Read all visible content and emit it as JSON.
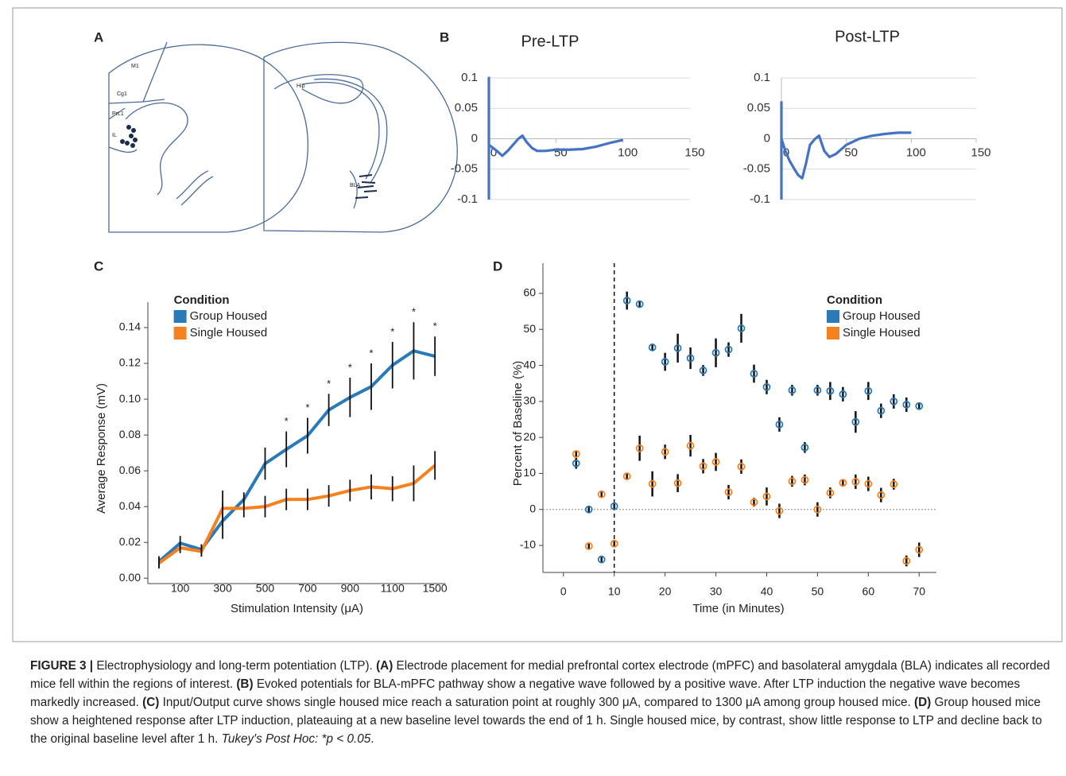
{
  "panel_labels": [
    "A",
    "B",
    "C",
    "D"
  ],
  "diagram": {
    "labels": [
      "M1",
      "Cg1",
      "PrL1",
      "IL",
      "Hip",
      "BLA"
    ]
  },
  "chart_data": [
    {
      "type": "line",
      "title": "Pre-LTP",
      "color": "#4472c4",
      "grid": true,
      "x": [
        0,
        0,
        0,
        3,
        6,
        10,
        14,
        18,
        22,
        25,
        28,
        32,
        36,
        42,
        50,
        60,
        70,
        80,
        90,
        100
      ],
      "values": [
        -0.1,
        0.1,
        -0.01,
        -0.015,
        -0.02,
        -0.028,
        -0.02,
        -0.01,
        0,
        0.005,
        -0.005,
        -0.015,
        -0.02,
        -0.02,
        -0.018,
        -0.018,
        -0.017,
        -0.013,
        -0.007,
        -0.002
      ],
      "xlim": [
        0,
        150
      ],
      "xticks": [
        0,
        50,
        100,
        150
      ],
      "ylim": [
        -0.1,
        0.1
      ],
      "yticks": [
        0.1,
        0.05,
        0,
        -0.05,
        -0.1
      ]
    },
    {
      "type": "line",
      "title": "Post-LTP",
      "color": "#4472c4",
      "grid": true,
      "x": [
        0,
        0,
        0,
        3,
        6,
        10,
        13,
        16,
        19,
        22,
        26,
        29,
        33,
        37,
        42,
        50,
        60,
        70,
        80,
        90,
        100
      ],
      "values": [
        -0.1,
        0.06,
        0,
        -0.02,
        -0.035,
        -0.05,
        -0.06,
        -0.065,
        -0.04,
        -0.01,
        0,
        0.005,
        -0.02,
        -0.03,
        -0.025,
        -0.01,
        0,
        0.005,
        0.008,
        0.01,
        0.01
      ],
      "xlim": [
        0,
        150
      ],
      "xticks": [
        0,
        50,
        100,
        150
      ],
      "ylim": [
        -0.1,
        0.1
      ],
      "yticks": [
        0.1,
        0.05,
        0,
        -0.05,
        -0.1
      ]
    },
    {
      "type": "line",
      "xlabel": "Stimulation Intensity (μA)",
      "ylabel": "Average Response (mV)",
      "categories": [
        null,
        "100",
        null,
        "300",
        null,
        "500",
        null,
        "700",
        null,
        "900",
        null,
        "1100",
        null,
        "1500"
      ],
      "legend": "upper left",
      "legend_title": "Condition",
      "series": [
        {
          "name": "Group Housed",
          "color": "#2a7ab8",
          "values": [
            0.0093,
            0.0196,
            0.016,
            0.032,
            0.044,
            0.064,
            0.072,
            0.0796,
            0.094,
            0.101,
            0.107,
            0.119,
            0.127,
            0.124
          ],
          "errors": [
            0.003,
            0.004,
            0.003,
            0.01,
            0.004,
            0.009,
            0.01,
            0.01,
            0.009,
            0.011,
            0.013,
            0.013,
            0.016,
            0.011
          ]
        },
        {
          "name": "Single Housed",
          "color": "#f5821f",
          "values": [
            0.0084,
            0.017,
            0.015,
            0.039,
            0.039,
            0.04,
            0.044,
            0.044,
            0.046,
            0.049,
            0.051,
            0.05,
            0.053,
            0.063
          ],
          "errors": [
            0.003,
            0.003,
            0.003,
            0.01,
            0.005,
            0.006,
            0.006,
            0.006,
            0.006,
            0.006,
            0.007,
            0.007,
            0.01,
            0.008
          ]
        }
      ],
      "significance": [
        null,
        null,
        null,
        null,
        null,
        null,
        "*",
        "*",
        "*",
        "*",
        "*",
        "*",
        "*",
        "*"
      ],
      "ylim": [
        -0.003,
        0.148
      ],
      "yticks": [
        {
          "value": 0,
          "label": "0.00"
        },
        {
          "value": 0.02,
          "label": "0.02"
        },
        {
          "value": 0.04,
          "label": "0.04"
        },
        {
          "value": 0.06,
          "label": "0.06"
        },
        {
          "value": 0.08,
          "label": "0.08"
        },
        {
          "value": 0.1,
          "label": "0.10"
        },
        {
          "value": 0.12,
          "label": "0.12"
        },
        {
          "value": 0.14,
          "label": "0.14"
        }
      ]
    },
    {
      "type": "scatter",
      "xlabel": "Time (in Minutes)",
      "ylabel": "Percent of Baseline (%)",
      "legend": "upper right",
      "legend_title": "Condition",
      "vline": 10,
      "hline": 0,
      "x": [
        2.5,
        5,
        7.5,
        10,
        12.5,
        15,
        17.5,
        20,
        22.5,
        25,
        27.5,
        30,
        32.5,
        35,
        37.5,
        40,
        42.5,
        45,
        47.5,
        50,
        52.5,
        55,
        57.5,
        60,
        62.5,
        65,
        67.5,
        70
      ],
      "series": [
        {
          "name": "Group Housed",
          "color": "#2a7ab8",
          "values": [
            12.8,
            0,
            -13.9,
            0.9,
            58,
            57,
            45,
            41,
            44.8,
            42,
            38.6,
            43.5,
            44.4,
            50.3,
            37.7,
            34,
            23.6,
            33.1,
            17.2,
            33.1,
            32.9,
            32,
            24.3,
            32.9,
            27.4,
            30,
            29.1,
            28.7
          ],
          "errors": [
            1.5,
            1,
            1,
            1,
            2.5,
            1,
            1,
            2.5,
            4,
            3,
            1.5,
            4,
            2,
            4,
            2.5,
            2,
            2,
            1.5,
            1.5,
            1.5,
            2.5,
            2,
            3,
            2.5,
            2,
            2,
            2,
            1
          ]
        },
        {
          "name": "Single Housed",
          "color": "#f5821f",
          "values": [
            15.4,
            -10.2,
            4.2,
            -9.5,
            9.2,
            17,
            7.1,
            16,
            7.3,
            17.7,
            12,
            13.2,
            4.8,
            11.9,
            2,
            3.6,
            -0.4,
            7.8,
            8.2,
            0,
            4.6,
            7.4,
            7.7,
            7.1,
            4,
            7,
            -14.3,
            -11.2
          ],
          "errors": [
            1,
            1,
            1,
            1,
            0.8,
            3.5,
            3.5,
            2,
            2.5,
            3,
            2,
            2.5,
            2,
            2,
            1.2,
            2.5,
            2,
            1.5,
            1.5,
            2,
            1.5,
            1,
            2,
            2,
            2,
            1.5,
            1.5,
            2
          ]
        }
      ],
      "xlim": [
        -4.5,
        73.4
      ],
      "xticks": [
        0,
        10,
        20,
        30,
        40,
        50,
        60,
        70
      ],
      "ylim": [
        -17.5,
        65.3
      ],
      "yticks": [
        60,
        50,
        40,
        30,
        20,
        10,
        0,
        -10
      ]
    }
  ],
  "caption": {
    "parts": [
      "FIGURE 3 |",
      " Electrophysiology and long-term potentiation (LTP). ",
      "(A)",
      " Electrode placement for medial prefrontal cortex electrode (mPFC) and basolateral amygdala (BLA) indicates all recorded mice fell within the regions of interest. ",
      "(B)",
      " Evoked potentials for BLA-mPFC pathway show a negative wave followed by a positive wave. After LTP induction the negative wave becomes markedly increased. ",
      "(C)",
      " Input/Output curve shows single housed mice reach a saturation point at roughly 300 μA, compared to 1300 μA among group housed mice. ",
      "(D)",
      " Group housed mice show a heightened response after LTP induction, plateauing at a new baseline level towards the end of 1 h. Single housed mice, by contrast, show little response to LTP and decline back to the original baseline level after 1 h. ",
      "Tukey's Post Hoc: *p < 0.05",
      "."
    ]
  }
}
